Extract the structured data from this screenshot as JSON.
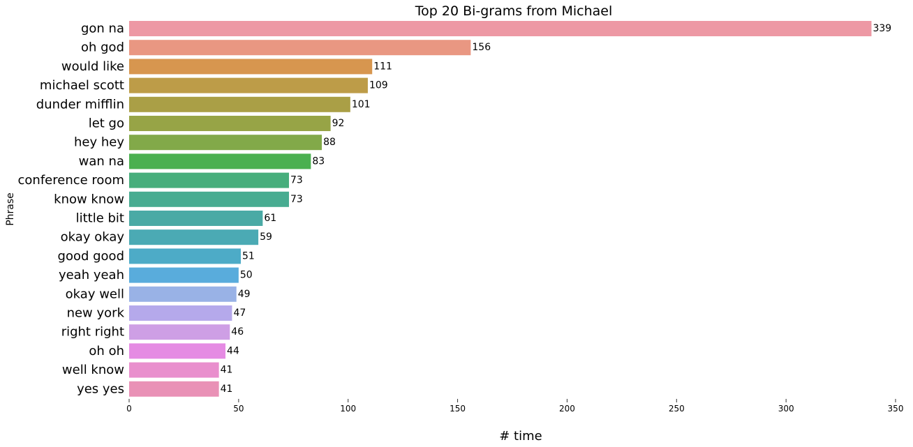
{
  "chart_data": {
    "type": "bar",
    "orientation": "horizontal",
    "title": "Top 20 Bi-grams from Michael",
    "xlabel": "# time",
    "ylabel": "Phrase",
    "xlim": [
      0,
      350
    ],
    "x_ticks": [
      0,
      50,
      100,
      150,
      200,
      250,
      300,
      350
    ],
    "grid": false,
    "categories": [
      "gon na",
      "oh god",
      "would like",
      "michael scott",
      "dunder mifflin",
      "let go",
      "hey hey",
      "wan na",
      "conference room",
      "know know",
      "little bit",
      "okay okay",
      "good good",
      "yeah yeah",
      "okay well",
      "new york",
      "right right",
      "oh oh",
      "well know",
      "yes yes"
    ],
    "values": [
      339,
      156,
      111,
      109,
      101,
      92,
      88,
      83,
      73,
      73,
      61,
      59,
      51,
      50,
      49,
      47,
      46,
      44,
      41,
      41
    ],
    "colors": [
      "#ED98A4",
      "#E99782",
      "#D7964F",
      "#BD9C48",
      "#AA9F46",
      "#97A446",
      "#82A949",
      "#4BB050",
      "#47AE7C",
      "#48AC91",
      "#4AAAA5",
      "#4BAAB4",
      "#4DABC7",
      "#59ACDC",
      "#99B2E6",
      "#B5A9EB",
      "#CE9FE5",
      "#E58BE3",
      "#E98FCD",
      "#E991B6"
    ]
  }
}
